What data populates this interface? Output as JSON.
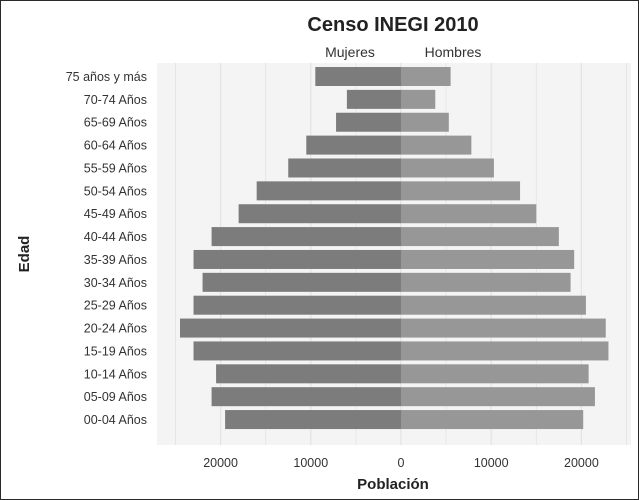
{
  "chart_data": {
    "type": "bar",
    "orientation": "horizontal",
    "title": "Censo INEGI 2010",
    "xlabel": "Población",
    "ylabel": "Edad",
    "categories": [
      "75 años y más",
      "70-74 Años",
      "65-69 Años",
      "60-64 Años",
      "55-59 Años",
      "50-54 Años",
      "45-49 Años",
      "40-44 Años",
      "35-39 Años",
      "30-34 Años",
      "25-29 Años",
      "20-24 Años",
      "15-19 Años",
      "10-14 Años",
      "05-09 Años",
      "00-04 Años"
    ],
    "series": [
      {
        "name": "Mujeres",
        "values": [
          9500,
          6000,
          7200,
          10500,
          12500,
          16000,
          18000,
          21000,
          23000,
          22000,
          23000,
          24500,
          23000,
          20500,
          21000,
          19500
        ]
      },
      {
        "name": "Hombres",
        "values": [
          5500,
          3800,
          5300,
          7800,
          10300,
          13200,
          15000,
          17500,
          19200,
          18800,
          20500,
          22700,
          23000,
          20800,
          21500,
          20200
        ]
      }
    ],
    "xticks": [
      "20000",
      "10000",
      "0",
      "10000",
      "20000"
    ],
    "xtick_values": [
      -20000,
      -10000,
      0,
      10000,
      20000
    ],
    "xlim": [
      -27000,
      25000
    ],
    "grid": true,
    "colors": {
      "mujeres": "#7c7c7c",
      "hombres": "#979797",
      "grid": "#e3e3e3",
      "panel": "#f4f4f4"
    }
  }
}
